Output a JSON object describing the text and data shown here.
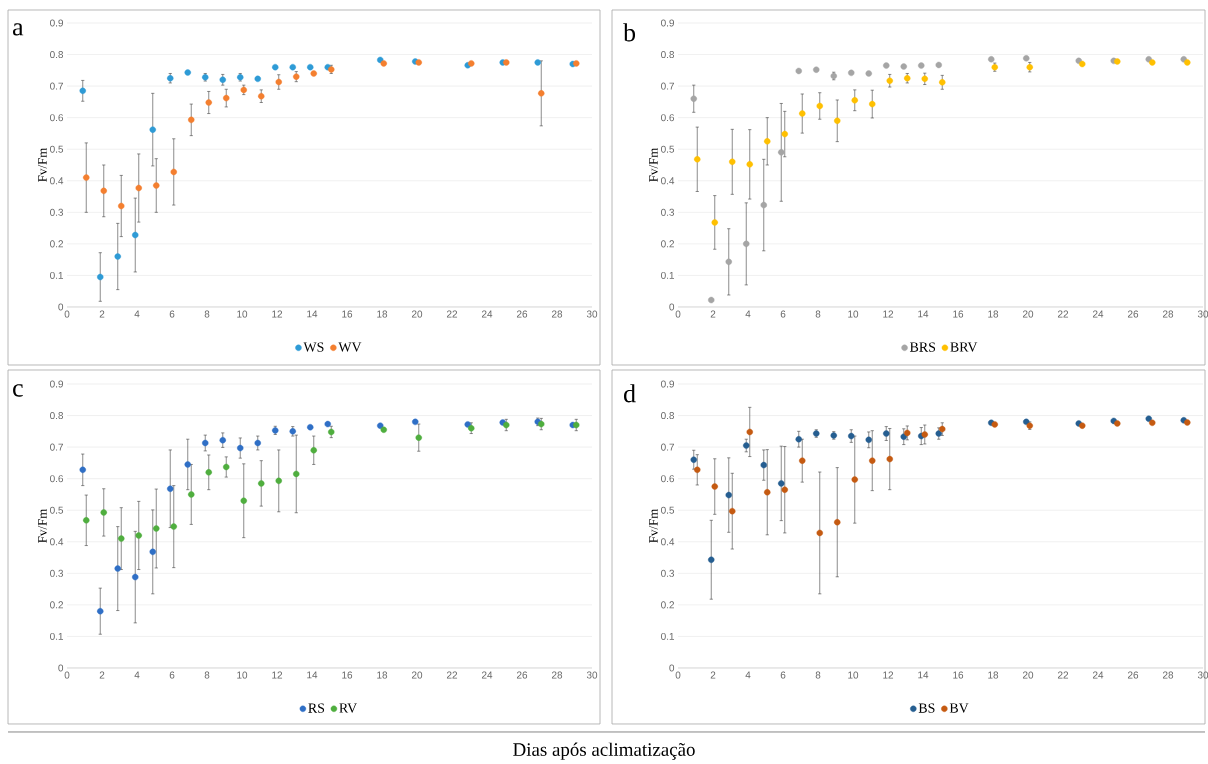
{
  "chart_data": [
    {
      "type": "scatter",
      "title": "a",
      "ylabel": "Fv/Fm",
      "xlim": [
        0,
        30
      ],
      "xticks": [
        0,
        2,
        4,
        6,
        8,
        10,
        12,
        14,
        16,
        18,
        20,
        22,
        24,
        26,
        28,
        30
      ],
      "ylim": [
        0,
        0.9
      ],
      "yticks": [
        0,
        0.1,
        0.2,
        0.3,
        0.4,
        0.5,
        0.6,
        0.7,
        0.8,
        0.9
      ],
      "grid": "y",
      "legend": "bottom",
      "marker": "circle",
      "series": [
        {
          "name": "WS",
          "color": "#2e9bd6",
          "x": [
            0.9,
            1.9,
            2.9,
            3.9,
            4.9,
            5.9,
            6.9,
            7.9,
            8.9,
            9.9,
            10.9,
            11.9,
            12.9,
            13.9,
            14.9,
            17.9,
            19.9,
            22.9,
            24.9,
            26.9,
            28.9
          ],
          "values": [
            0.685,
            0.095,
            0.16,
            0.228,
            0.562,
            0.725,
            0.743,
            0.728,
            0.72,
            0.728,
            0.723,
            0.76,
            0.76,
            0.76,
            0.76,
            0.783,
            0.778,
            0.766,
            0.775,
            0.775,
            0.77
          ],
          "errors": [
            0.033,
            0.077,
            0.105,
            0.117,
            0.115,
            0.015,
            null,
            0.012,
            0.017,
            0.012,
            null,
            null,
            null,
            null,
            null,
            null,
            null,
            null,
            null,
            null,
            null
          ]
        },
        {
          "name": "WV",
          "color": "#f47f2f",
          "x": [
            1.1,
            2.1,
            3.1,
            4.1,
            5.1,
            6.1,
            7.1,
            8.1,
            9.1,
            10.1,
            11.1,
            12.1,
            13.1,
            14.1,
            15.1,
            18.1,
            20.1,
            23.1,
            25.1,
            27.1,
            29.1
          ],
          "values": [
            0.41,
            0.368,
            0.32,
            0.377,
            0.385,
            0.428,
            0.593,
            0.648,
            0.662,
            0.688,
            0.668,
            0.713,
            0.73,
            0.74,
            0.753,
            0.772,
            0.775,
            0.772,
            0.775,
            0.677,
            0.772
          ],
          "errors": [
            0.11,
            0.082,
            0.097,
            0.108,
            0.085,
            0.105,
            0.05,
            0.035,
            0.028,
            0.015,
            0.02,
            0.023,
            0.016,
            null,
            0.013,
            null,
            null,
            null,
            null,
            0.103,
            null
          ]
        }
      ]
    },
    {
      "type": "scatter",
      "title": "b",
      "ylabel": "Fv/Fm",
      "xlim": [
        0,
        30
      ],
      "xticks": [
        0,
        2,
        4,
        6,
        8,
        10,
        12,
        14,
        16,
        18,
        20,
        22,
        24,
        26,
        28,
        30
      ],
      "ylim": [
        0,
        0.9
      ],
      "yticks": [
        0,
        0.1,
        0.2,
        0.3,
        0.4,
        0.5,
        0.6,
        0.7,
        0.8,
        0.9
      ],
      "grid": "y",
      "legend": "bottom",
      "marker": "circle",
      "series": [
        {
          "name": "BRS",
          "color": "#a5a5a5",
          "x": [
            0.9,
            1.9,
            2.9,
            3.9,
            4.9,
            5.9,
            6.9,
            7.9,
            8.9,
            9.9,
            10.9,
            11.9,
            12.9,
            13.9,
            14.9,
            17.9,
            19.9,
            22.9,
            24.9,
            26.9,
            28.9
          ],
          "values": [
            0.66,
            0.022,
            0.143,
            0.2,
            0.323,
            0.49,
            0.748,
            0.752,
            0.732,
            0.742,
            0.74,
            0.765,
            0.762,
            0.765,
            0.767,
            0.785,
            0.788,
            0.78,
            0.78,
            0.785,
            0.785
          ],
          "errors": [
            0.043,
            null,
            0.105,
            0.13,
            0.145,
            0.155,
            null,
            null,
            0.012,
            null,
            null,
            null,
            null,
            null,
            null,
            null,
            null,
            null,
            null,
            null,
            null
          ]
        },
        {
          "name": "BRV",
          "color": "#ffc000",
          "x": [
            1.1,
            2.1,
            3.1,
            4.1,
            5.1,
            6.1,
            7.1,
            8.1,
            9.1,
            10.1,
            11.1,
            12.1,
            13.1,
            14.1,
            15.1,
            18.1,
            20.1,
            23.1,
            25.1,
            27.1,
            29.1
          ],
          "values": [
            0.468,
            0.268,
            0.46,
            0.452,
            0.525,
            0.548,
            0.613,
            0.637,
            0.59,
            0.655,
            0.643,
            0.717,
            0.725,
            0.723,
            0.712,
            0.76,
            0.76,
            0.77,
            0.778,
            0.775,
            0.775
          ],
          "errors": [
            0.102,
            0.085,
            0.103,
            0.11,
            0.075,
            0.072,
            0.062,
            0.042,
            0.066,
            0.033,
            0.044,
            0.02,
            0.015,
            0.018,
            0.022,
            0.013,
            0.015,
            null,
            null,
            null,
            null
          ]
        }
      ]
    },
    {
      "type": "scatter",
      "title": "c",
      "ylabel": "Fv/Fm",
      "xlabel": "Dias após aclimatização",
      "xlim": [
        0,
        30
      ],
      "xticks": [
        0,
        2,
        4,
        6,
        8,
        10,
        12,
        14,
        16,
        18,
        20,
        22,
        24,
        26,
        28,
        30
      ],
      "ylim": [
        0,
        0.9
      ],
      "yticks": [
        0,
        0.1,
        0.2,
        0.3,
        0.4,
        0.5,
        0.6,
        0.7,
        0.8,
        0.9
      ],
      "grid": "y",
      "legend": "bottom",
      "marker": "circle",
      "series": [
        {
          "name": "RS",
          "color": "#2f6fc6",
          "x": [
            0.9,
            1.9,
            2.9,
            3.9,
            4.9,
            5.9,
            6.9,
            7.9,
            8.9,
            9.9,
            10.9,
            11.9,
            12.9,
            13.9,
            14.9,
            17.9,
            19.9,
            22.9,
            24.9,
            26.9,
            28.9
          ],
          "values": [
            0.628,
            0.18,
            0.315,
            0.288,
            0.368,
            0.568,
            0.645,
            0.713,
            0.722,
            0.697,
            0.713,
            0.753,
            0.75,
            0.763,
            0.773,
            0.768,
            0.78,
            0.772,
            0.778,
            0.78,
            0.77
          ],
          "errors": [
            0.05,
            0.073,
            0.133,
            0.145,
            0.133,
            0.123,
            0.08,
            0.025,
            0.023,
            0.032,
            0.022,
            0.013,
            0.015,
            null,
            null,
            null,
            null,
            null,
            null,
            0.012,
            null
          ]
        },
        {
          "name": "RV",
          "color": "#4fae3e",
          "x": [
            1.1,
            2.1,
            3.1,
            4.1,
            5.1,
            6.1,
            7.1,
            8.1,
            9.1,
            10.1,
            11.1,
            12.1,
            13.1,
            14.1,
            15.1,
            18.1,
            20.1,
            23.1,
            25.1,
            27.1,
            29.1
          ],
          "values": [
            0.468,
            0.493,
            0.41,
            0.42,
            0.442,
            0.448,
            0.55,
            0.62,
            0.637,
            0.53,
            0.585,
            0.593,
            0.615,
            0.69,
            0.748,
            0.755,
            0.73,
            0.76,
            0.77,
            0.773,
            0.77
          ],
          "errors": [
            0.08,
            0.075,
            0.098,
            0.108,
            0.125,
            0.13,
            0.095,
            0.055,
            0.032,
            0.117,
            0.072,
            0.098,
            0.123,
            0.045,
            0.018,
            null,
            0.043,
            0.017,
            0.018,
            0.018,
            0.018
          ]
        }
      ]
    },
    {
      "type": "scatter",
      "title": "d",
      "ylabel": "Fv/Fm",
      "xlim": [
        0,
        30
      ],
      "xticks": [
        0,
        2,
        4,
        6,
        8,
        10,
        12,
        14,
        16,
        18,
        20,
        22,
        24,
        26,
        28,
        30
      ],
      "ylim": [
        0,
        0.9
      ],
      "yticks": [
        0,
        0.1,
        0.2,
        0.3,
        0.4,
        0.5,
        0.6,
        0.7,
        0.8,
        0.9
      ],
      "grid": "y",
      "legend": "bottom",
      "marker": "circle",
      "series": [
        {
          "name": "BS",
          "color": "#255e91",
          "x": [
            0.9,
            1.9,
            2.9,
            3.9,
            4.9,
            5.9,
            6.9,
            7.9,
            8.9,
            9.9,
            10.9,
            11.9,
            12.9,
            13.9,
            14.9,
            17.9,
            19.9,
            22.9,
            24.9,
            26.9,
            28.9
          ],
          "values": [
            0.66,
            0.343,
            0.548,
            0.705,
            0.643,
            0.585,
            0.725,
            0.743,
            0.737,
            0.735,
            0.723,
            0.743,
            0.733,
            0.735,
            0.743,
            0.777,
            0.78,
            0.775,
            0.783,
            0.79,
            0.785
          ],
          "errors": [
            0.03,
            0.125,
            0.118,
            0.02,
            0.048,
            0.118,
            0.025,
            0.012,
            0.012,
            0.02,
            0.025,
            0.022,
            0.025,
            0.027,
            0.018,
            null,
            null,
            null,
            null,
            null,
            null
          ]
        },
        {
          "name": "BV",
          "color": "#c55a11",
          "x": [
            1.1,
            2.1,
            3.1,
            4.1,
            5.1,
            6.1,
            7.1,
            8.1,
            9.1,
            10.1,
            11.1,
            12.1,
            13.1,
            14.1,
            15.1,
            18.1,
            20.1,
            23.1,
            25.1,
            27.1,
            29.1
          ],
          "values": [
            0.628,
            0.575,
            0.497,
            0.748,
            0.557,
            0.565,
            0.657,
            0.428,
            0.462,
            0.597,
            0.657,
            0.662,
            0.745,
            0.74,
            0.757,
            0.772,
            0.768,
            0.768,
            0.775,
            0.777,
            0.778
          ],
          "errors": [
            0.048,
            0.088,
            0.12,
            0.078,
            0.135,
            0.137,
            0.068,
            0.193,
            0.173,
            0.138,
            0.095,
            0.097,
            0.022,
            0.03,
            0.02,
            null,
            0.012,
            null,
            null,
            null,
            null
          ]
        }
      ]
    }
  ]
}
